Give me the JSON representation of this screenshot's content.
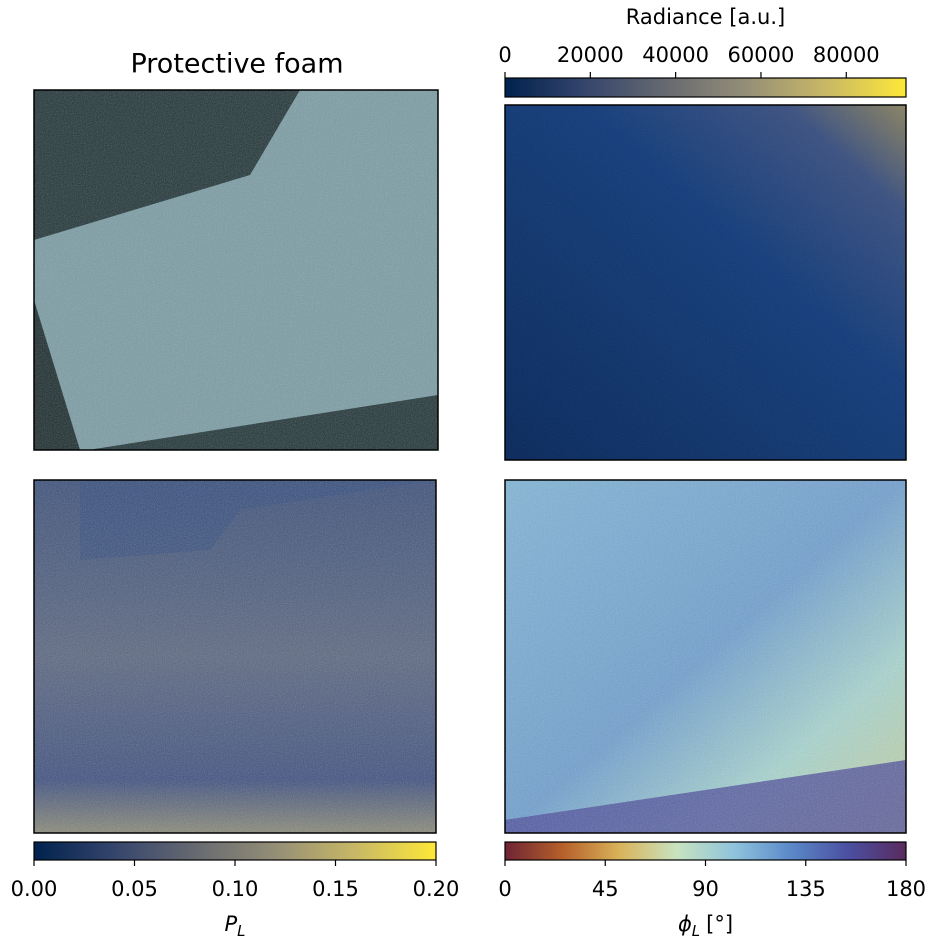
{
  "title": "Protective foam",
  "chart_data": [
    {
      "type": "colorbar",
      "label": "Radiance [a.u.]",
      "xlim": [
        0,
        94000
      ],
      "xticks": [
        0,
        20000,
        40000,
        60000,
        80000
      ],
      "colormap": [
        "#00224e",
        "#35456c",
        "#666970",
        "#948e77",
        "#c8b866",
        "#fee838"
      ]
    },
    {
      "type": "colorbar",
      "label": {
        "symbol": "P",
        "subscript": "L"
      },
      "xlim": [
        0,
        0.2
      ],
      "xticks": [
        {
          "value": 0,
          "label": "0.00"
        },
        0.05,
        {
          "value": 0.1,
          "label": "0.10"
        },
        0.15,
        {
          "value": 0.2,
          "label": "0.20"
        }
      ],
      "colormap": [
        "#00224e",
        "#35456c",
        "#666970",
        "#948e77",
        "#c8b866",
        "#fee838"
      ]
    },
    {
      "type": "colorbar",
      "label": {
        "symbol": "ϕ",
        "subscript": "L",
        "unit": "[°]"
      },
      "xlim": [
        0,
        180
      ],
      "xticks": [
        0,
        45,
        90,
        135,
        180
      ],
      "colormap": [
        "#6e2334",
        "#b5602a",
        "#d9b35a",
        "#c8e3c0",
        "#8fc4dc",
        "#5a88c8",
        "#4b4fa0",
        "#5a2a5e"
      ]
    }
  ]
}
